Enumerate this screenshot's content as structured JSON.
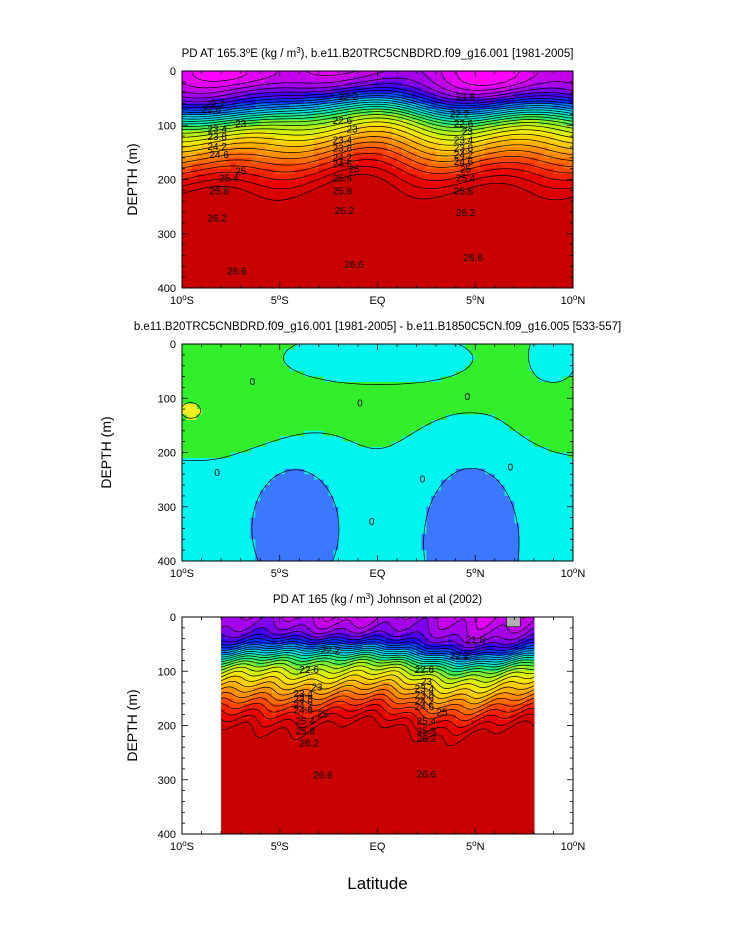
{
  "chart_data": [
    {
      "type": "heatmap",
      "title": "PD AT 165.3°E (kg / m³), b.e11.B20TRC5CNBDRD.f09_g16.001 [1981-2005]",
      "ylabel": "DEPTH (m)",
      "xlabel": "",
      "xlim": [
        -10,
        10
      ],
      "ylim": [
        0,
        400
      ],
      "xticks": [
        "10°S",
        "5°S",
        "EQ",
        "5°N",
        "10°N"
      ],
      "yticks": [
        "0",
        "100",
        "200",
        "300",
        "400"
      ],
      "data_extent": [
        -10,
        10
      ],
      "field": "upper",
      "levels": [
        21.4,
        21.6,
        21.8,
        22.0,
        22.2,
        22.4,
        22.6,
        22.8,
        23.0,
        23.2,
        23.4,
        23.6,
        23.8,
        24.0,
        24.2,
        24.4,
        24.6,
        24.8,
        25.0,
        25.2,
        25.4,
        25.6,
        25.8,
        26.0,
        26.2,
        26.4,
        26.6,
        26.8
      ],
      "contour_labels": [
        {
          "text": "22.2",
          "lat": -8.3,
          "depth": 62
        },
        {
          "text": "22.6",
          "lat": -8.5,
          "depth": 72
        },
        {
          "text": "23",
          "lat": -7.0,
          "depth": 98
        },
        {
          "text": "23.4",
          "lat": -8.2,
          "depth": 108
        },
        {
          "text": "23.8",
          "lat": -8.2,
          "depth": 122
        },
        {
          "text": "24.2",
          "lat": -8.2,
          "depth": 140
        },
        {
          "text": "24.6",
          "lat": -8.1,
          "depth": 155
        },
        {
          "text": "25",
          "lat": -7.0,
          "depth": 185
        },
        {
          "text": "25.4",
          "lat": -7.6,
          "depth": 198
        },
        {
          "text": "25.8",
          "lat": -8.1,
          "depth": 222
        },
        {
          "text": "26.2",
          "lat": -8.2,
          "depth": 272
        },
        {
          "text": "26.6",
          "lat": -7.2,
          "depth": 370
        },
        {
          "text": "22.2",
          "lat": -1.5,
          "depth": 48
        },
        {
          "text": "22.6",
          "lat": -1.8,
          "depth": 92
        },
        {
          "text": "23",
          "lat": -1.3,
          "depth": 108
        },
        {
          "text": "23.4",
          "lat": -1.8,
          "depth": 128
        },
        {
          "text": "23.8",
          "lat": -1.8,
          "depth": 143
        },
        {
          "text": "24.2",
          "lat": -1.8,
          "depth": 160
        },
        {
          "text": "24.6",
          "lat": -1.8,
          "depth": 172
        },
        {
          "text": "25",
          "lat": -1.2,
          "depth": 182
        },
        {
          "text": "25.4",
          "lat": -1.8,
          "depth": 198
        },
        {
          "text": "25.8",
          "lat": -1.8,
          "depth": 222
        },
        {
          "text": "26.2",
          "lat": -1.7,
          "depth": 258
        },
        {
          "text": "26.6",
          "lat": -1.2,
          "depth": 358
        },
        {
          "text": "21.8",
          "lat": 4.5,
          "depth": 48
        },
        {
          "text": "22.2",
          "lat": 4.2,
          "depth": 80
        },
        {
          "text": "22.6",
          "lat": 4.4,
          "depth": 98
        },
        {
          "text": "23",
          "lat": 4.6,
          "depth": 112
        },
        {
          "text": "23.4",
          "lat": 4.4,
          "depth": 128
        },
        {
          "text": "23.8",
          "lat": 4.4,
          "depth": 143
        },
        {
          "text": "24.2",
          "lat": 4.4,
          "depth": 155
        },
        {
          "text": "24.6",
          "lat": 4.4,
          "depth": 168
        },
        {
          "text": "25",
          "lat": 4.5,
          "depth": 182
        },
        {
          "text": "25.4",
          "lat": 4.5,
          "depth": 198
        },
        {
          "text": "25.8",
          "lat": 4.4,
          "depth": 222
        },
        {
          "text": "26.2",
          "lat": 4.5,
          "depth": 262
        },
        {
          "text": "26.6",
          "lat": 4.9,
          "depth": 345
        }
      ]
    },
    {
      "type": "heatmap",
      "title": "b.e11.B20TRC5CNBDRD.f09_g16.001 [1981-2005] - b.e11.B1850C5CN.f09_g16.005 [533-557]",
      "ylabel": "DEPTH (m)",
      "xlabel": "",
      "xlim": [
        -10,
        10
      ],
      "ylim": [
        0,
        400
      ],
      "xticks": [
        "10°S",
        "5°S",
        "EQ",
        "5°N",
        "10°N"
      ],
      "yticks": [
        "0",
        "100",
        "200",
        "300",
        "400"
      ],
      "data_extent": [
        -10,
        10
      ],
      "field": "diff",
      "levels": [
        -0.5,
        0,
        0.5
      ],
      "contour_labels": [
        {
          "text": "0",
          "lat": -6.4,
          "depth": 70
        },
        {
          "text": "0",
          "lat": -0.9,
          "depth": 110
        },
        {
          "text": "0",
          "lat": 4.6,
          "depth": 98
        },
        {
          "text": "0",
          "lat": -8.2,
          "depth": 238
        },
        {
          "text": "0",
          "lat": 2.3,
          "depth": 250
        },
        {
          "text": "0",
          "lat": 6.8,
          "depth": 228
        },
        {
          "text": "0",
          "lat": -0.3,
          "depth": 328
        }
      ]
    },
    {
      "type": "heatmap",
      "title": "PD AT 165 (kg / m³) Johnson et al (2002)",
      "ylabel": "DEPTH (m)",
      "xlabel": "Latitude",
      "xlim": [
        -10,
        10
      ],
      "ylim": [
        0,
        400
      ],
      "xticks": [
        "10°S",
        "5°S",
        "EQ",
        "5°N",
        "10°N"
      ],
      "yticks": [
        "0",
        "100",
        "200",
        "300",
        "400"
      ],
      "data_extent": [
        -8,
        8
      ],
      "field": "obs",
      "levels": [
        21.4,
        21.6,
        21.8,
        22.0,
        22.2,
        22.4,
        22.6,
        22.8,
        23.0,
        23.2,
        23.4,
        23.6,
        23.8,
        24.0,
        24.2,
        24.4,
        24.6,
        24.8,
        25.0,
        25.2,
        25.4,
        25.6,
        25.8,
        26.0,
        26.2,
        26.4,
        26.6,
        26.8
      ],
      "contour_labels": [
        {
          "text": "21.8",
          "lat": 5.0,
          "depth": 42
        },
        {
          "text": "22.2",
          "lat": -2.4,
          "depth": 62
        },
        {
          "text": "22.2",
          "lat": 4.2,
          "depth": 72
        },
        {
          "text": "22.6",
          "lat": -3.5,
          "depth": 98
        },
        {
          "text": "22.6",
          "lat": 2.4,
          "depth": 98
        },
        {
          "text": "23",
          "lat": -3.1,
          "depth": 130
        },
        {
          "text": "23",
          "lat": 2.5,
          "depth": 120
        },
        {
          "text": "23.4",
          "lat": -3.8,
          "depth": 142
        },
        {
          "text": "23.4",
          "lat": 2.4,
          "depth": 133
        },
        {
          "text": "23.8",
          "lat": -3.8,
          "depth": 152
        },
        {
          "text": "23.8",
          "lat": 2.4,
          "depth": 145
        },
        {
          "text": "24.2",
          "lat": -3.8,
          "depth": 163
        },
        {
          "text": "24.2",
          "lat": 2.4,
          "depth": 156
        },
        {
          "text": "24.6",
          "lat": -3.8,
          "depth": 172
        },
        {
          "text": "24.6",
          "lat": 2.4,
          "depth": 166
        },
        {
          "text": "25",
          "lat": -2.8,
          "depth": 180
        },
        {
          "text": "25",
          "lat": 3.3,
          "depth": 176
        },
        {
          "text": "25.4",
          "lat": -3.7,
          "depth": 193
        },
        {
          "text": "25.4",
          "lat": 2.5,
          "depth": 193
        },
        {
          "text": "25.8",
          "lat": -3.7,
          "depth": 211
        },
        {
          "text": "25.8",
          "lat": 2.5,
          "depth": 211
        },
        {
          "text": "26.2",
          "lat": -3.5,
          "depth": 233
        },
        {
          "text": "26.2",
          "lat": 2.5,
          "depth": 225
        },
        {
          "text": "26.6",
          "lat": -2.8,
          "depth": 292
        },
        {
          "text": "26.6",
          "lat": 2.5,
          "depth": 290
        }
      ]
    }
  ]
}
